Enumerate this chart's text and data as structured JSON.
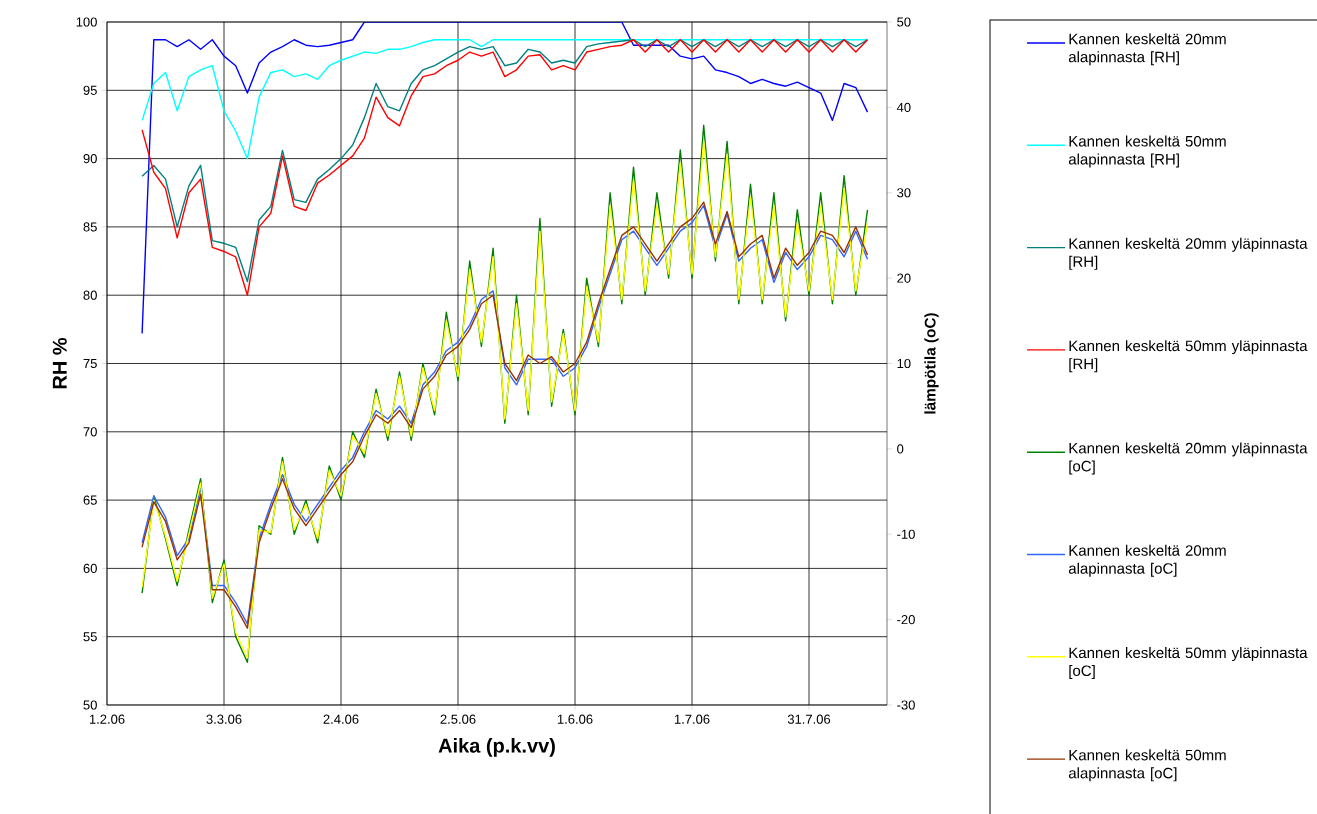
{
  "chart_data": {
    "type": "line",
    "xlabel": "Aika (p.k.vv)",
    "ylabel": "RH %",
    "y2label": "lämpötila (oC)",
    "x": [
      "2006-02-10",
      "2006-02-13",
      "2006-02-16",
      "2006-02-19",
      "2006-02-22",
      "2006-02-25",
      "2006-02-28",
      "2006-03-03",
      "2006-03-06",
      "2006-03-09",
      "2006-03-12",
      "2006-03-15",
      "2006-03-18",
      "2006-03-21",
      "2006-03-24",
      "2006-03-27",
      "2006-03-30",
      "2006-04-02",
      "2006-04-05",
      "2006-04-08",
      "2006-04-11",
      "2006-04-14",
      "2006-04-17",
      "2006-04-20",
      "2006-04-23",
      "2006-04-26",
      "2006-04-29",
      "2006-05-02",
      "2006-05-05",
      "2006-05-08",
      "2006-05-11",
      "2006-05-14",
      "2006-05-17",
      "2006-05-20",
      "2006-05-23",
      "2006-05-26",
      "2006-05-29",
      "2006-06-01",
      "2006-06-04",
      "2006-06-07",
      "2006-06-10",
      "2006-06-13",
      "2006-06-16",
      "2006-06-19",
      "2006-06-22",
      "2006-06-25",
      "2006-06-28",
      "2006-07-01",
      "2006-07-04",
      "2006-07-07",
      "2006-07-10",
      "2006-07-13",
      "2006-07-16",
      "2006-07-19",
      "2006-07-22",
      "2006-07-25",
      "2006-07-28",
      "2006-07-31",
      "2006-08-03",
      "2006-08-06",
      "2006-08-09",
      "2006-08-12",
      "2006-08-15"
    ],
    "xlim": [
      "2006-02-01",
      "2006-08-20"
    ],
    "xticks": [
      {
        "value": "2006-02-01",
        "label": "1.2.06"
      },
      {
        "value": "2006-03-03",
        "label": "3.3.06"
      },
      {
        "value": "2006-04-02",
        "label": "2.4.06"
      },
      {
        "value": "2006-05-02",
        "label": "2.5.06"
      },
      {
        "value": "2006-06-01",
        "label": "1.6.06"
      },
      {
        "value": "2006-07-01",
        "label": "1.7.06"
      },
      {
        "value": "2006-07-31",
        "label": "31.7.06"
      }
    ],
    "ylim": [
      50,
      100
    ],
    "yticks": [
      50,
      55,
      60,
      65,
      70,
      75,
      80,
      85,
      90,
      95,
      100
    ],
    "y2lim": [
      -30,
      50
    ],
    "y2ticks": [
      -30,
      -20,
      -10,
      0,
      10,
      20,
      30,
      40,
      50
    ],
    "grid": true,
    "legend": "right",
    "series": [
      {
        "name": "Kannen keskeltä 20mm alapinnasta [RH]",
        "color": "#0000ff",
        "values": [
          77.2,
          98.7,
          98.7,
          98.2,
          98.7,
          98,
          98.7,
          97.5,
          96.8,
          94.8,
          97,
          97.8,
          98.2,
          98.7,
          98.3,
          98.2,
          98.3,
          98.5,
          98.7,
          100,
          100,
          100,
          100,
          100,
          100,
          100,
          100,
          100,
          100,
          100,
          100,
          100,
          100,
          100,
          100,
          100,
          100,
          100,
          100,
          100,
          100,
          100,
          98.3,
          98.3,
          98.3,
          98.3,
          97.5,
          97.3,
          97.5,
          96.5,
          96.3,
          96,
          95.5,
          95.8,
          95.5,
          95.3,
          95.6,
          95.2,
          94.8,
          92.8,
          95.5,
          95.2,
          93.4
        ]
      },
      {
        "name": "Kannen keskeltä 50mm alapinnasta [RH]",
        "color": "#00ffff",
        "values": [
          92.8,
          95.5,
          96.3,
          93.5,
          96,
          96.5,
          96.8,
          93.5,
          92,
          90,
          94.5,
          96.3,
          96.5,
          96,
          96.2,
          95.8,
          96.8,
          97.2,
          97.5,
          97.8,
          97.7,
          98,
          98,
          98.2,
          98.5,
          98.7,
          98.7,
          98.7,
          98.7,
          98.2,
          98.7,
          98.7,
          98.7,
          98.7,
          98.7,
          98.7,
          98.7,
          98.7,
          98.7,
          98.7,
          98.7,
          98.7,
          98.7,
          98.7,
          98.7,
          98.7,
          98.7,
          98.7,
          98.7,
          98.7,
          98.7,
          98.7,
          98.7,
          98.7,
          98.7,
          98.7,
          98.7,
          98.7,
          98.7,
          98.7,
          98.7,
          98.7,
          98.7
        ]
      },
      {
        "name": "Kannen keskeltä 20mm yläpinnasta [RH]",
        "color": "#008080",
        "values": [
          88.7,
          89.5,
          88.5,
          85,
          88,
          89.5,
          84,
          83.8,
          83.5,
          81,
          85.5,
          86.5,
          90.6,
          87,
          86.8,
          88.5,
          89.2,
          90,
          91,
          93,
          95.5,
          93.8,
          93.5,
          95.5,
          96.5,
          96.8,
          97.3,
          97.8,
          98.2,
          98,
          98.2,
          96.8,
          97,
          98,
          97.8,
          97,
          97.2,
          97,
          98.2,
          98.4,
          98.5,
          98.6,
          98.7,
          98.2,
          98.7,
          98.2,
          98.7,
          98.2,
          98.7,
          98.2,
          98.7,
          98.2,
          98.7,
          98.2,
          98.7,
          98.2,
          98.7,
          98.2,
          98.7,
          98.2,
          98.7,
          98.2,
          98.7
        ]
      },
      {
        "name": "Kannen keskeltä 50mm yläpinnasta [RH]",
        "color": "#ff0000",
        "values": [
          92.1,
          89,
          87.8,
          84.2,
          87.5,
          88.5,
          83.5,
          83.2,
          82.8,
          80,
          85,
          86,
          90.2,
          86.5,
          86.2,
          88.2,
          88.8,
          89.5,
          90.2,
          91.5,
          94.5,
          93,
          92.4,
          94.6,
          96,
          96.2,
          96.8,
          97.2,
          97.8,
          97.5,
          97.8,
          96,
          96.5,
          97.5,
          97.6,
          96.5,
          96.8,
          96.5,
          97.8,
          98,
          98.2,
          98.3,
          98.7,
          97.8,
          98.7,
          97.8,
          98.7,
          97.8,
          98.7,
          97.8,
          98.7,
          97.8,
          98.7,
          97.8,
          98.7,
          97.8,
          98.7,
          97.8,
          98.7,
          97.8,
          98.7,
          97.8,
          98.7
        ]
      },
      {
        "name": "Kannen keskeltä 20mm yläpinnasta [oC]",
        "color": "#008000",
        "axis": "y2",
        "values": [
          -16.9,
          -5.5,
          -10.5,
          -16,
          -9.5,
          -3.5,
          -18,
          -13,
          -22,
          -25,
          -9,
          -10,
          -1,
          -10,
          -6,
          -11,
          -2,
          -6,
          2,
          -1,
          7,
          1,
          9,
          1,
          10,
          4,
          16,
          8,
          22,
          12,
          23.5,
          3,
          18,
          4,
          27,
          5,
          14,
          4,
          20,
          12,
          30,
          17,
          33,
          18,
          30,
          20,
          35,
          20,
          37.9,
          22,
          36,
          17,
          31,
          17,
          30,
          15,
          28,
          18,
          30,
          17,
          32,
          18,
          28
        ]
      },
      {
        "name": "Kannen keskeltä 20mm alapinnasta [oC]",
        "color": "#3366ff",
        "axis": "y2",
        "values": [
          -11,
          -5.5,
          -8,
          -12.5,
          -10.5,
          -4.5,
          -16,
          -16,
          -18,
          -20.5,
          -10.5,
          -6.5,
          -3,
          -6.5,
          -8.5,
          -6.5,
          -4.5,
          -2.5,
          -1,
          2,
          4.5,
          3.5,
          5,
          3,
          7.5,
          9,
          11.5,
          12.5,
          14.5,
          17.5,
          18.5,
          9.5,
          7.5,
          10.5,
          10.5,
          10.5,
          8.5,
          9.5,
          12,
          16.5,
          20.5,
          24.5,
          25.5,
          23.5,
          21.5,
          23.5,
          25.5,
          26.5,
          28.5,
          23.5,
          27.5,
          22,
          23.5,
          24.5,
          19.5,
          23,
          21,
          22.5,
          25,
          24.5,
          22.5,
          25.5,
          22.2
        ]
      },
      {
        "name": "Kannen keskeltä 50mm yläpinnasta [oC]",
        "color": "#ffff00",
        "axis": "y2",
        "values": [
          -16.2,
          -6,
          -10.2,
          -15.5,
          -10,
          -4,
          -17.5,
          -13.5,
          -21.5,
          -24.5,
          -9.5,
          -9.8,
          -1.5,
          -9.5,
          -6.5,
          -10.5,
          -2.5,
          -5.5,
          1.5,
          -0.5,
          6.5,
          1.5,
          8.5,
          1.5,
          9.5,
          4.5,
          15,
          8.5,
          21,
          12.5,
          22.5,
          3.5,
          17,
          4.5,
          25.5,
          5.5,
          13.5,
          4.5,
          19,
          12.5,
          28.5,
          17.5,
          31.5,
          18.5,
          28.5,
          20.5,
          33.5,
          20.5,
          36,
          22.5,
          34.5,
          17.5,
          29.5,
          17.5,
          28.5,
          15.5,
          26.5,
          18.5,
          28.5,
          17.5,
          30.5,
          18.5,
          26.5
        ]
      },
      {
        "name": "Kannen keskeltä 50mm alapinnasta [oC]",
        "color": "#993300",
        "axis": "y2",
        "values": [
          -11.5,
          -6.2,
          -8.5,
          -13,
          -11,
          -5.3,
          -16.5,
          -16.5,
          -18.5,
          -21,
          -11,
          -7,
          -3.5,
          -7,
          -9,
          -7,
          -5,
          -3,
          -1.5,
          1.5,
          4,
          3,
          4.5,
          2.5,
          7,
          8.5,
          11,
          12,
          14,
          17,
          18,
          10,
          8,
          11,
          10,
          10.8,
          9,
          10,
          12.5,
          17,
          21,
          25,
          26,
          24,
          22,
          24,
          26,
          27,
          28.9,
          24,
          27.8,
          22.5,
          24,
          25,
          20,
          23.5,
          21.5,
          23,
          25.5,
          25,
          23,
          26,
          22.7
        ]
      }
    ]
  }
}
